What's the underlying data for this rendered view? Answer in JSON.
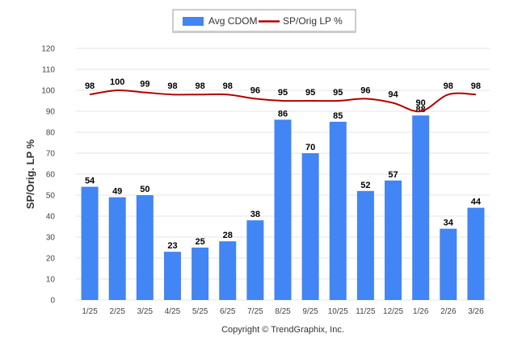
{
  "chart_data": {
    "type": "bar",
    "categories": [
      "1/25",
      "2/25",
      "3/25",
      "4/25",
      "5/25",
      "6/25",
      "7/25",
      "8/25",
      "9/25",
      "10/25",
      "11/25",
      "12/25",
      "1/26",
      "2/26",
      "3/26"
    ],
    "series": [
      {
        "name": "Avg CDOM",
        "type": "bar",
        "color": "#4285f4",
        "values": [
          54,
          49,
          50,
          23,
          25,
          28,
          38,
          86,
          70,
          85,
          52,
          57,
          88,
          34,
          44
        ]
      },
      {
        "name": "SP/Orig LP %",
        "type": "line",
        "color": "#b30000",
        "values": [
          98,
          100,
          99,
          98,
          98,
          98,
          96,
          95,
          95,
          95,
          96,
          94,
          90,
          98,
          98
        ]
      }
    ],
    "ylabel": "SP/Orig. LP %",
    "ylim": [
      0,
      120
    ],
    "yticks": [
      0,
      10,
      20,
      30,
      40,
      50,
      60,
      70,
      80,
      90,
      100,
      110,
      120
    ],
    "grid": true,
    "legend_position": "top-center",
    "credit": "Copyright © TrendGraphix, Inc."
  }
}
